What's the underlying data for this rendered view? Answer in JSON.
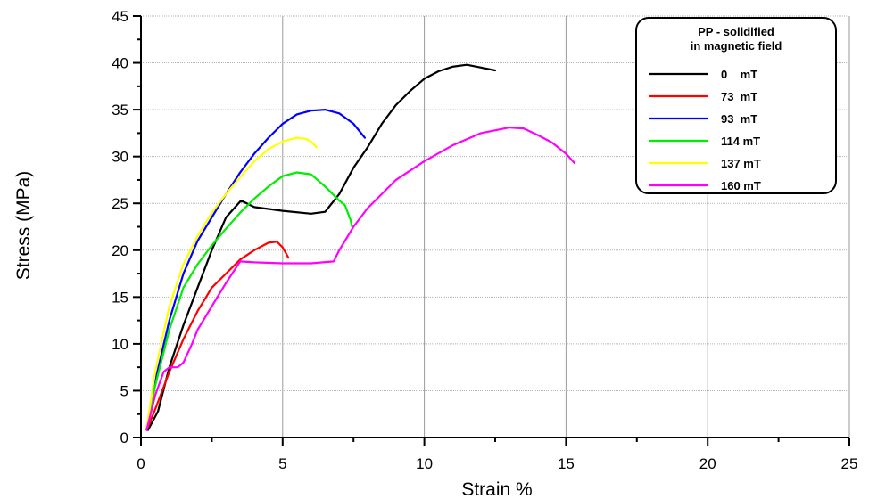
{
  "chart_data": {
    "type": "line",
    "xlabel": "Strain %",
    "ylabel": "Stress (MPa)",
    "xlim": [
      0,
      25
    ],
    "ylim": [
      0,
      45
    ],
    "x_ticks": [
      0,
      5,
      10,
      15,
      20,
      25
    ],
    "y_ticks": [
      0,
      5,
      10,
      15,
      20,
      25,
      30,
      35,
      40,
      45
    ],
    "grid": true,
    "legend_placement": "top-right",
    "legend_title": [
      "PP - solidified",
      "in magnetic field"
    ],
    "series": [
      {
        "name": "0    mT",
        "color": "#000000",
        "x": [
          0.25,
          0.6,
          1.0,
          1.5,
          2.0,
          2.5,
          3.0,
          3.5,
          3.6,
          4.0,
          5.0,
          6.0,
          6.5,
          7.0,
          7.5,
          8.0,
          8.5,
          9.0,
          9.5,
          10.0,
          10.5,
          11.0,
          11.5,
          12.0,
          12.5
        ],
        "y": [
          0.8,
          2.8,
          7.5,
          12.0,
          16.0,
          20.0,
          23.5,
          25.2,
          25.2,
          24.6,
          24.2,
          23.9,
          24.1,
          26.0,
          28.8,
          31.0,
          33.5,
          35.5,
          37.0,
          38.3,
          39.1,
          39.6,
          39.8,
          39.5,
          39.2
        ]
      },
      {
        "name": "73  mT",
        "color": "#ff0000",
        "x": [
          0.2,
          0.5,
          1.0,
          1.5,
          2.0,
          2.5,
          3.0,
          3.5,
          4.0,
          4.5,
          4.8,
          5.0,
          5.2
        ],
        "y": [
          0.8,
          3.0,
          7.0,
          10.5,
          13.5,
          16.0,
          17.5,
          19.0,
          20.0,
          20.8,
          20.9,
          20.3,
          19.2
        ]
      },
      {
        "name": "93  mT",
        "color": "#0000ff",
        "x": [
          0.2,
          0.5,
          1.0,
          1.5,
          2.0,
          2.5,
          3.0,
          3.5,
          4.0,
          4.5,
          5.0,
          5.5,
          6.0,
          6.5,
          7.0,
          7.5,
          7.9
        ],
        "y": [
          1.0,
          6.0,
          12.5,
          17.5,
          21.0,
          23.5,
          26.0,
          28.3,
          30.3,
          32.0,
          33.5,
          34.5,
          34.9,
          35.0,
          34.6,
          33.5,
          32.0
        ]
      },
      {
        "name": "114 mT",
        "color": "#00ee00",
        "x": [
          0.2,
          0.5,
          1.0,
          1.5,
          2.0,
          2.5,
          3.0,
          3.5,
          4.0,
          4.5,
          5.0,
          5.5,
          6.0,
          6.5,
          7.0,
          7.2,
          7.3,
          7.4,
          7.45
        ],
        "y": [
          1.0,
          5.5,
          11.5,
          16.0,
          18.5,
          20.5,
          22.3,
          24.0,
          25.5,
          26.8,
          27.9,
          28.3,
          28.1,
          26.8,
          25.3,
          24.8,
          24.0,
          23.2,
          22.5
        ]
      },
      {
        "name": "137 mT",
        "color": "#ffff00",
        "x": [
          0.2,
          0.5,
          1.0,
          1.5,
          2.0,
          2.5,
          3.0,
          3.5,
          4.0,
          4.5,
          5.0,
          5.5,
          5.8,
          6.0,
          6.2
        ],
        "y": [
          1.0,
          7.0,
          14.0,
          18.5,
          21.5,
          24.0,
          26.0,
          27.8,
          29.5,
          30.8,
          31.6,
          32.0,
          31.9,
          31.6,
          31.0
        ]
      },
      {
        "name": "160 mT",
        "color": "#ff00ff",
        "x": [
          0.2,
          0.5,
          0.8,
          1.0,
          1.3,
          1.5,
          1.8,
          2.0,
          2.5,
          3.0,
          3.5,
          4.0,
          5.0,
          6.0,
          6.8,
          7.0,
          7.5,
          8.0,
          9.0,
          10.0,
          11.0,
          12.0,
          13.0,
          13.5,
          14.0,
          14.5,
          15.0,
          15.3
        ],
        "y": [
          0.8,
          4.5,
          7.0,
          7.5,
          7.5,
          8.0,
          10.0,
          11.5,
          14.0,
          16.5,
          18.8,
          18.7,
          18.6,
          18.6,
          18.8,
          20.0,
          22.5,
          24.5,
          27.5,
          29.5,
          31.2,
          32.5,
          33.1,
          33.0,
          32.3,
          31.5,
          30.3,
          29.3
        ]
      }
    ]
  }
}
